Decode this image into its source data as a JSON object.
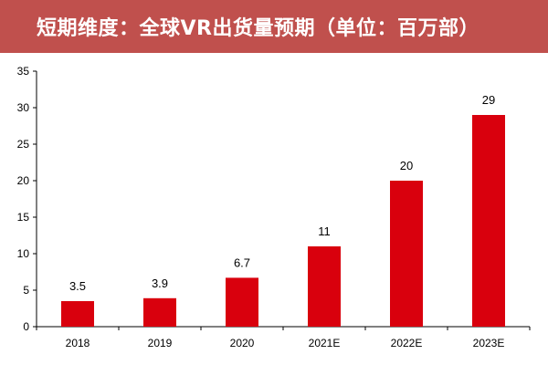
{
  "title": "短期维度：全球VR出货量预期（单位：百万部）",
  "colors": {
    "title_background": "#c0504d",
    "title_text": "#ffffff",
    "bar": "#d9000d",
    "axis": "#000000"
  },
  "chart_data": {
    "type": "bar",
    "title": "短期维度：全球VR出货量预期（单位：百万部）",
    "categories": [
      "2018",
      "2019",
      "2020",
      "2021E",
      "2022E",
      "2023E"
    ],
    "values": [
      3.5,
      3.9,
      6.7,
      11,
      20,
      29
    ],
    "data_labels": [
      "3.5",
      "3.9",
      "6.7",
      "11",
      "20",
      "29"
    ],
    "ylim": [
      0,
      35
    ],
    "yticks": [
      0,
      5,
      10,
      15,
      20,
      25,
      30,
      35
    ],
    "ytick_labels": [
      "0",
      "5",
      "10",
      "15",
      "20",
      "25",
      "30",
      "35"
    ],
    "xlabel": "",
    "ylabel": "",
    "grid": false,
    "legend": "none"
  }
}
